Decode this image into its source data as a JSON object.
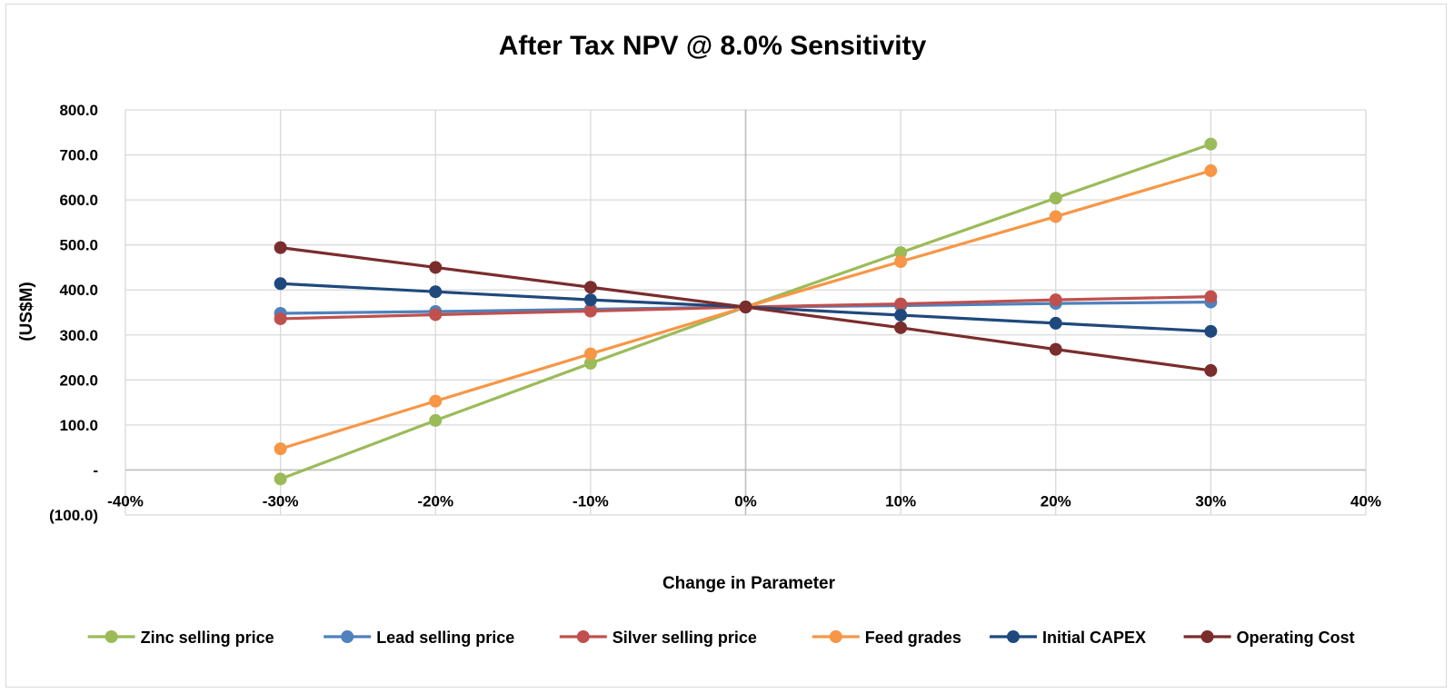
{
  "chart_data": {
    "type": "line",
    "title": "After Tax NPV @ 8.0% Sensitivity",
    "xlabel": "Change in Parameter",
    "ylabel": "(US$M)",
    "xlim": [
      -40,
      40
    ],
    "ylim": [
      -100,
      800
    ],
    "x_ticks": [
      -40,
      -30,
      -20,
      -10,
      0,
      10,
      20,
      30,
      40
    ],
    "x_tick_labels": [
      "-40%",
      "-30%",
      "-20%",
      "-10%",
      "0%",
      "10%",
      "20%",
      "30%",
      "40%"
    ],
    "y_ticks": [
      800,
      700,
      600,
      500,
      400,
      300,
      200,
      100,
      0,
      -100
    ],
    "y_tick_labels": [
      "800.0",
      "700.0",
      "600.0",
      "500.0",
      "400.0",
      "300.0",
      "200.0",
      "100.0",
      "-",
      "(100.0)"
    ],
    "grid": true,
    "legend_position": "bottom",
    "x": [
      -30,
      -20,
      -10,
      0,
      10,
      20,
      30
    ],
    "series": [
      {
        "name": "Zinc selling price",
        "color": "#9BBB59",
        "values": [
          -20,
          110,
          237,
          362,
          483,
          604,
          724
        ]
      },
      {
        "name": "Lead selling price",
        "color": "#4F81BD",
        "values": [
          348,
          352,
          357,
          362,
          365,
          370,
          373
        ]
      },
      {
        "name": "Silver selling price",
        "color": "#C0504D",
        "values": [
          336,
          345,
          353,
          362,
          369,
          378,
          385
        ]
      },
      {
        "name": "Feed grades",
        "color": "#F79646",
        "values": [
          47,
          153,
          258,
          362,
          463,
          563,
          665
        ]
      },
      {
        "name": "Initial CAPEX",
        "color": "#1F497D",
        "values": [
          414,
          396,
          378,
          362,
          344,
          326,
          308
        ]
      },
      {
        "name": "Operating Cost",
        "color": "#7B2C2C",
        "values": [
          494,
          450,
          406,
          362,
          316,
          268,
          221
        ]
      }
    ]
  }
}
